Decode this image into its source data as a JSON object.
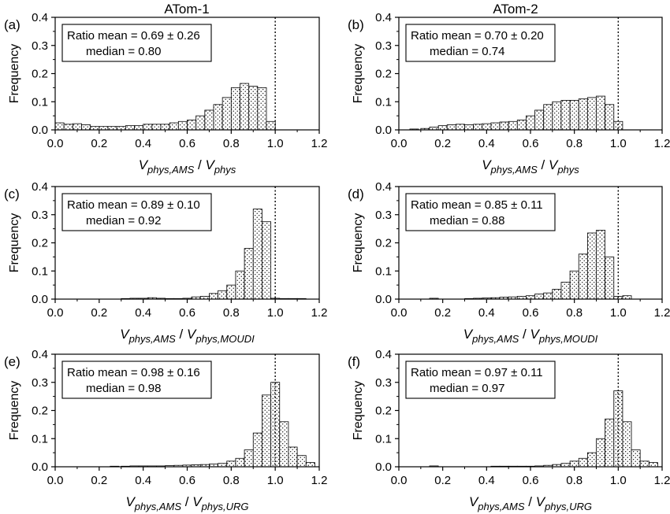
{
  "columns": [
    "ATom-1",
    "ATom-2"
  ],
  "colors": {
    "axis": "#000000",
    "bar_fill": "#ffffff",
    "stipple": "#000000"
  },
  "chart_data": [
    {
      "type": "bar",
      "panel": "(a)",
      "ylabel": "Frequency",
      "xlabel": {
        "base": "V",
        "sub1": "phys,AMS",
        "sep": " / ",
        "base2": "V",
        "sub2": "phys"
      },
      "xlim": [
        0,
        1.2
      ],
      "ylim": [
        0,
        0.4
      ],
      "xticks": [
        "0.0",
        "0.2",
        "0.4",
        "0.6",
        "0.8",
        "1.0",
        "1.2"
      ],
      "yticks": [
        "0.0",
        "0.1",
        "0.2",
        "0.3",
        "0.4"
      ],
      "bin_width": 0.04,
      "bin_start": [
        0.0,
        0.04,
        0.08,
        0.12,
        0.16,
        0.2,
        0.24,
        0.28,
        0.32,
        0.36,
        0.4,
        0.44,
        0.48,
        0.52,
        0.56,
        0.6,
        0.64,
        0.68,
        0.72,
        0.76,
        0.8,
        0.84,
        0.88,
        0.92,
        0.96
      ],
      "values": [
        0.025,
        0.02,
        0.022,
        0.018,
        0.012,
        0.012,
        0.012,
        0.012,
        0.015,
        0.015,
        0.02,
        0.02,
        0.02,
        0.025,
        0.03,
        0.035,
        0.05,
        0.07,
        0.09,
        0.115,
        0.15,
        0.165,
        0.155,
        0.15,
        0.03
      ],
      "ref_line_x": 1.0,
      "annotation": {
        "line1": "Ratio mean = 0.69 ± 0.26",
        "line2": "median = 0.80"
      }
    },
    {
      "type": "bar",
      "panel": "(b)",
      "ylabel": "Frequency",
      "xlabel": {
        "base": "V",
        "sub1": "phys,AMS",
        "sep": " / ",
        "base2": "V",
        "sub2": "phys"
      },
      "xlim": [
        0,
        1.2
      ],
      "ylim": [
        0,
        0.4
      ],
      "xticks": [
        "0.0",
        "0.2",
        "0.4",
        "0.6",
        "0.8",
        "1.0",
        "1.2"
      ],
      "yticks": [
        "0.0",
        "0.1",
        "0.2",
        "0.3",
        "0.4"
      ],
      "bin_width": 0.04,
      "bin_start": [
        0.05,
        0.1,
        0.14,
        0.18,
        0.22,
        0.26,
        0.3,
        0.34,
        0.38,
        0.42,
        0.46,
        0.5,
        0.54,
        0.58,
        0.62,
        0.66,
        0.7,
        0.74,
        0.78,
        0.82,
        0.86,
        0.9,
        0.94,
        0.98
      ],
      "values": [
        0.003,
        0.005,
        0.01,
        0.015,
        0.018,
        0.02,
        0.018,
        0.02,
        0.022,
        0.025,
        0.028,
        0.03,
        0.035,
        0.05,
        0.07,
        0.09,
        0.1,
        0.105,
        0.105,
        0.11,
        0.115,
        0.12,
        0.09,
        0.03
      ],
      "ref_line_x": 1.0,
      "annotation": {
        "line1": "Ratio mean = 0.70 ± 0.20",
        "line2": "median = 0.74"
      }
    },
    {
      "type": "bar",
      "panel": "(c)",
      "ylabel": "Frequency",
      "xlabel": {
        "base": "V",
        "sub1": "phys,AMS",
        "sep": " / ",
        "base2": "V",
        "sub2": "phys,MOUDI"
      },
      "xlim": [
        0,
        1.2
      ],
      "ylim": [
        0,
        0.4
      ],
      "xticks": [
        "0.0",
        "0.2",
        "0.4",
        "0.6",
        "0.8",
        "1.0",
        "1.2"
      ],
      "yticks": [
        "0.0",
        "0.1",
        "0.2",
        "0.3",
        "0.4"
      ],
      "bin_width": 0.04,
      "bin_start": [
        0.3,
        0.34,
        0.38,
        0.42,
        0.46,
        0.5,
        0.54,
        0.58,
        0.62,
        0.66,
        0.7,
        0.74,
        0.78,
        0.82,
        0.86,
        0.9,
        0.94,
        0.98,
        1.02,
        1.06,
        1.1
      ],
      "values": [
        0.002,
        0.003,
        0.003,
        0.005,
        0.003,
        0.002,
        0.002,
        0.003,
        0.008,
        0.01,
        0.02,
        0.03,
        0.05,
        0.1,
        0.18,
        0.32,
        0.275,
        0.003,
        0.002,
        0.002,
        0.002
      ],
      "ref_line_x": 1.0,
      "annotation": {
        "line1": "Ratio mean = 0.89 ± 0.10",
        "line2": "median = 0.92"
      }
    },
    {
      "type": "bar",
      "panel": "(d)",
      "ylabel": "Frequency",
      "xlabel": {
        "base": "V",
        "sub1": "phys,AMS",
        "sep": " / ",
        "base2": "V",
        "sub2": "phys,MOUDI"
      },
      "xlim": [
        0,
        1.2
      ],
      "ylim": [
        0,
        0.4
      ],
      "xticks": [
        "0.0",
        "0.2",
        "0.4",
        "0.6",
        "0.8",
        "1.0",
        "1.2"
      ],
      "yticks": [
        "0.0",
        "0.1",
        "0.2",
        "0.3",
        "0.4"
      ],
      "bin_width": 0.04,
      "bin_start": [
        0.14,
        0.3,
        0.34,
        0.38,
        0.42,
        0.46,
        0.5,
        0.54,
        0.58,
        0.62,
        0.66,
        0.7,
        0.74,
        0.78,
        0.82,
        0.86,
        0.9,
        0.94,
        0.98,
        1.02
      ],
      "values": [
        0.003,
        0.002,
        0.003,
        0.004,
        0.005,
        0.007,
        0.008,
        0.01,
        0.012,
        0.018,
        0.022,
        0.035,
        0.06,
        0.1,
        0.16,
        0.235,
        0.245,
        0.15,
        0.01,
        0.012
      ],
      "ref_line_x": 1.0,
      "annotation": {
        "line1": "Ratio mean = 0.85 ± 0.11",
        "line2": "median = 0.88"
      }
    },
    {
      "type": "bar",
      "panel": "(e)",
      "ylabel": "Frequency",
      "xlabel": {
        "base": "V",
        "sub1": "phys,AMS",
        "sep": " / ",
        "base2": "V",
        "sub2": "phys,URG"
      },
      "xlim": [
        0,
        1.2
      ],
      "ylim": [
        0,
        0.4
      ],
      "xticks": [
        "0.0",
        "0.2",
        "0.4",
        "0.6",
        "0.8",
        "1.0",
        "1.2"
      ],
      "yticks": [
        "0.0",
        "0.1",
        "0.2",
        "0.3",
        "0.4"
      ],
      "bin_width": 0.04,
      "bin_start": [
        0.25,
        0.3,
        0.34,
        0.38,
        0.42,
        0.46,
        0.5,
        0.54,
        0.58,
        0.62,
        0.66,
        0.7,
        0.74,
        0.78,
        0.82,
        0.86,
        0.9,
        0.94,
        0.98,
        1.02,
        1.06,
        1.1,
        1.14
      ],
      "values": [
        0.002,
        0.002,
        0.003,
        0.003,
        0.003,
        0.003,
        0.004,
        0.005,
        0.006,
        0.007,
        0.008,
        0.01,
        0.012,
        0.02,
        0.03,
        0.06,
        0.12,
        0.255,
        0.3,
        0.16,
        0.07,
        0.04,
        0.015
      ],
      "ref_line_x": 1.0,
      "annotation": {
        "line1": "Ratio mean = 0.98 ± 0.16",
        "line2": "median = 0.98"
      }
    },
    {
      "type": "bar",
      "panel": "(f)",
      "ylabel": "Frequency",
      "xlabel": {
        "base": "V",
        "sub1": "phys,AMS",
        "sep": " / ",
        "base2": "V",
        "sub2": "phys,URG"
      },
      "xlim": [
        0,
        1.2
      ],
      "ylim": [
        0,
        0.4
      ],
      "xticks": [
        "0.0",
        "0.2",
        "0.4",
        "0.6",
        "0.8",
        "1.0",
        "1.2"
      ],
      "yticks": [
        "0.0",
        "0.1",
        "0.2",
        "0.3",
        "0.4"
      ],
      "bin_width": 0.04,
      "bin_start": [
        0.14,
        0.42,
        0.46,
        0.5,
        0.54,
        0.58,
        0.62,
        0.66,
        0.7,
        0.74,
        0.78,
        0.82,
        0.86,
        0.9,
        0.94,
        0.98,
        1.02,
        1.06,
        1.1,
        1.14
      ],
      "values": [
        0.003,
        0.002,
        0.002,
        0.002,
        0.002,
        0.002,
        0.003,
        0.005,
        0.008,
        0.012,
        0.02,
        0.03,
        0.05,
        0.1,
        0.17,
        0.27,
        0.16,
        0.06,
        0.02,
        0.015
      ],
      "ref_line_x": 1.0,
      "annotation": {
        "line1": "Ratio mean = 0.97 ± 0.11",
        "line2": "median = 0.97"
      }
    }
  ]
}
